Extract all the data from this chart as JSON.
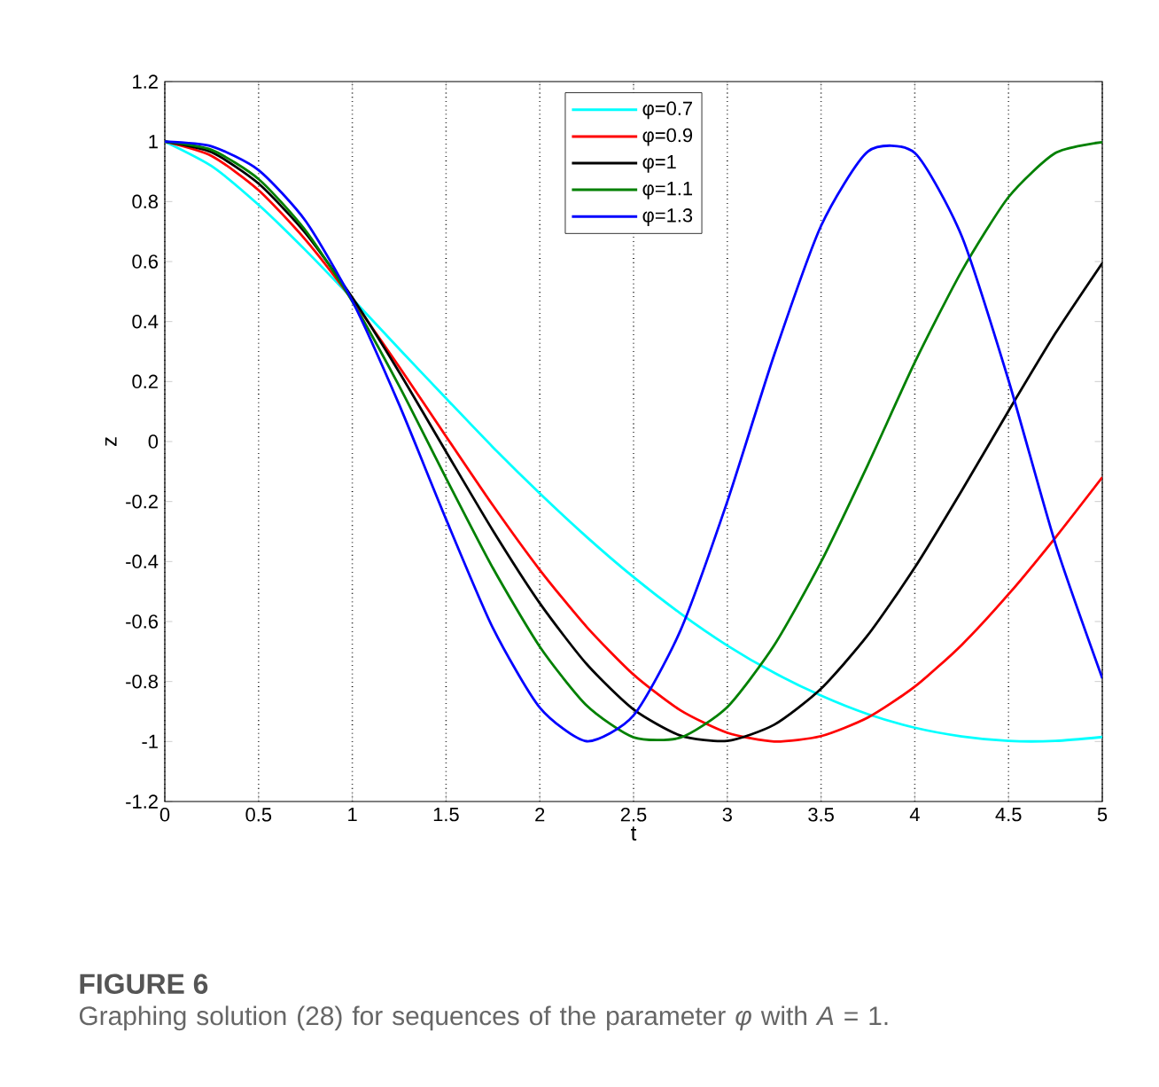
{
  "chart_data": {
    "type": "line",
    "xlabel": "t",
    "ylabel": "z",
    "x": [
      0,
      0.25,
      0.5,
      0.75,
      1,
      1.25,
      1.5,
      1.75,
      2,
      2.25,
      2.5,
      2.75,
      3,
      3.25,
      3.5,
      3.75,
      4,
      4.25,
      4.5,
      4.75,
      5
    ],
    "series": [
      {
        "name": "φ=0.7",
        "color": "#00ffff",
        "values": [
          1,
          0.918,
          0.789,
          0.638,
          0.476,
          0.309,
          0.144,
          -0.019,
          -0.173,
          -0.318,
          -0.452,
          -0.573,
          -0.68,
          -0.771,
          -0.847,
          -0.909,
          -0.954,
          -0.983,
          -0.998,
          -0.998,
          -0.985
        ]
      },
      {
        "name": "φ=0.9",
        "color": "#ff0000",
        "values": [
          1,
          0.952,
          0.838,
          0.673,
          0.472,
          0.249,
          0.017,
          -0.213,
          -0.428,
          -0.618,
          -0.777,
          -0.896,
          -0.971,
          -1.0,
          -0.982,
          -0.92,
          -0.817,
          -0.678,
          -0.509,
          -0.32,
          -0.119
        ]
      },
      {
        "name": "φ=1",
        "color": "#000000",
        "values": [
          1,
          0.964,
          0.86,
          0.695,
          0.48,
          0.231,
          -0.034,
          -0.297,
          -0.539,
          -0.742,
          -0.893,
          -0.98,
          -0.998,
          -0.944,
          -0.824,
          -0.645,
          -0.42,
          -0.164,
          0.102,
          0.361,
          0.595
        ]
      },
      {
        "name": "φ=1.1",
        "color": "#008000",
        "values": [
          1,
          0.972,
          0.875,
          0.704,
          0.467,
          0.185,
          -0.122,
          -0.422,
          -0.684,
          -0.88,
          -0.986,
          -0.987,
          -0.885,
          -0.679,
          -0.401,
          -0.077,
          0.264,
          0.568,
          0.815,
          0.962,
          0.998
        ]
      },
      {
        "name": "φ=1.3",
        "color": "#0000ff",
        "values": [
          1,
          0.984,
          0.905,
          0.736,
          0.469,
          0.123,
          -0.259,
          -0.622,
          -0.887,
          -0.999,
          -0.913,
          -0.63,
          -0.2,
          0.289,
          0.719,
          0.967,
          0.962,
          0.685,
          0.204,
          -0.341,
          -0.789
        ]
      }
    ],
    "xlim": [
      0,
      5
    ],
    "ylim": [
      -1.2,
      1.2
    ],
    "xticks": [
      0,
      0.5,
      1,
      1.5,
      2,
      2.5,
      3,
      3.5,
      4,
      4.5,
      5
    ],
    "yticks": [
      -1.2,
      -1,
      -0.8,
      -0.6,
      -0.4,
      -0.2,
      0,
      0.2,
      0.4,
      0.6,
      0.8,
      1,
      1.2
    ],
    "grid": "x",
    "legend": "top",
    "line_style": "solid",
    "annotations": [
      "**FIGURE 6**",
      "Graphing solution (28) for sequences of the parameter *φ* with *A* = 1."
    ]
  }
}
